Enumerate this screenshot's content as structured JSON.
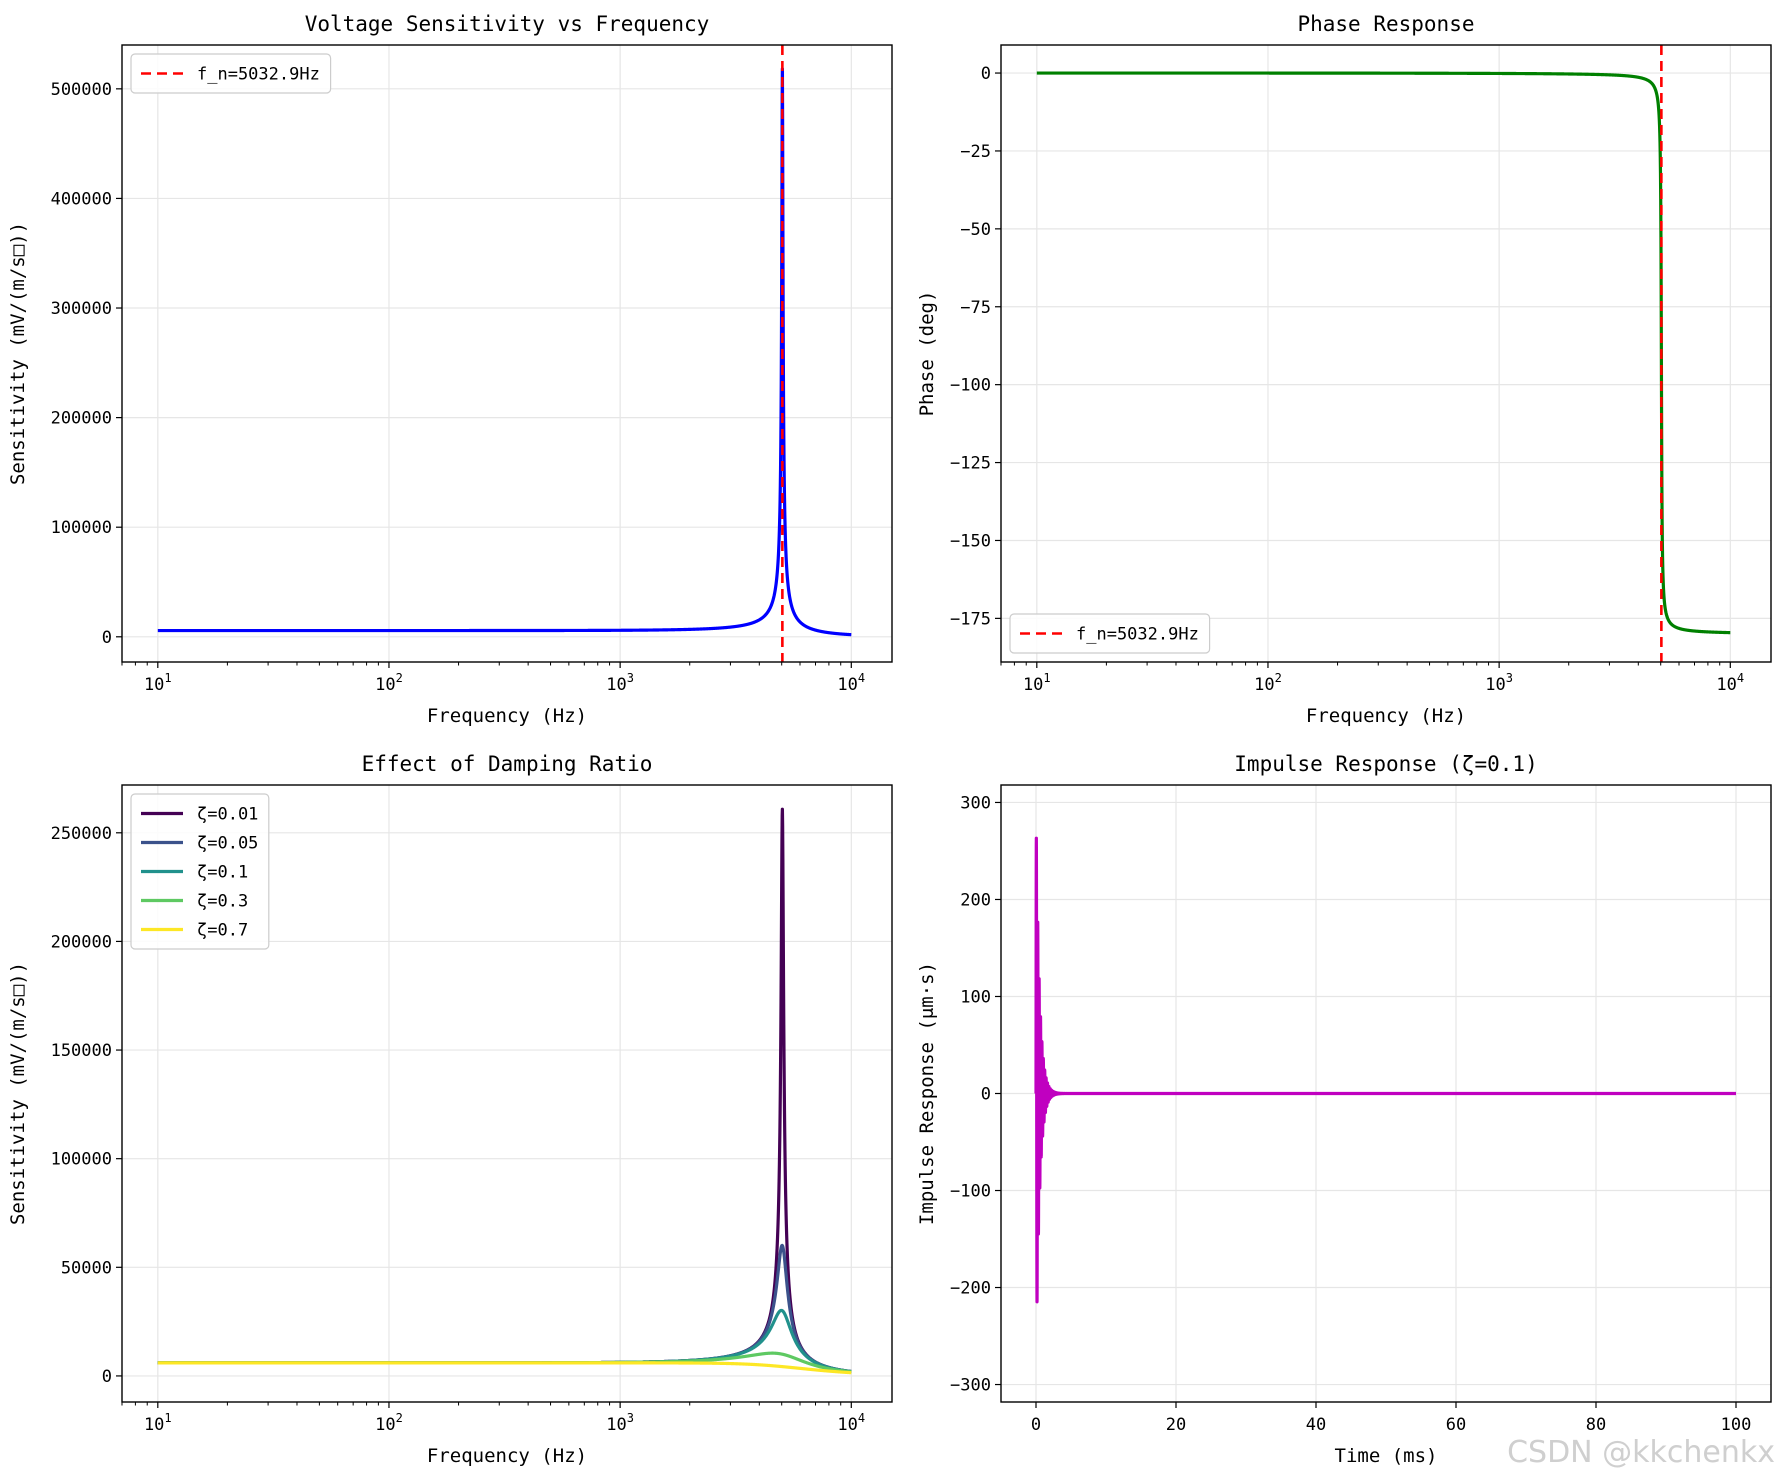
{
  "watermark": "CSDN @kkchenkx",
  "chart_data": [
    {
      "id": "sens",
      "type": "line",
      "title": "Voltage Sensitivity vs Frequency",
      "xlabel": "Frequency (Hz)",
      "ylabel": "Sensitivity (mV/(m/s□))",
      "xscale": "log",
      "xlim": [
        7,
        15000
      ],
      "ylim": [
        -23000,
        540000
      ],
      "xticks": [
        10,
        100,
        1000,
        10000
      ],
      "xticklabels": [
        [
          "10",
          "1"
        ],
        [
          "10",
          "2"
        ],
        [
          "10",
          "3"
        ],
        [
          "10",
          "4"
        ]
      ],
      "yticks": [
        0,
        100000,
        200000,
        300000,
        400000,
        500000
      ],
      "yticklabels": [
        "0",
        "100000",
        "200000",
        "300000",
        "400000",
        "500000"
      ],
      "grid": true,
      "legend_loc": "upper-left",
      "series": [
        {
          "name": "Sensitivity",
          "color": "#0000ff",
          "width": 3.2,
          "legend": false,
          "model": {
            "kind": "resonance",
            "fn": 5032.9,
            "zeta": 0.0055,
            "s0": 5700,
            "fmin": 10,
            "fmax": 10000
          }
        }
      ],
      "vlines": [
        {
          "x": 5032.9,
          "label": "f_n=5032.9Hz",
          "color": "#ff0000",
          "width": 2.6,
          "dash": "10,6"
        }
      ]
    },
    {
      "id": "phase",
      "type": "line",
      "title": "Phase Response",
      "xlabel": "Frequency (Hz)",
      "ylabel": "Phase (deg)",
      "xscale": "log",
      "xlim": [
        7,
        15000
      ],
      "ylim": [
        -189,
        9
      ],
      "xticks": [
        10,
        100,
        1000,
        10000
      ],
      "xticklabels": [
        [
          "10",
          "1"
        ],
        [
          "10",
          "2"
        ],
        [
          "10",
          "3"
        ],
        [
          "10",
          "4"
        ]
      ],
      "yticks": [
        0,
        -25,
        -50,
        -75,
        -100,
        -125,
        -150,
        -175
      ],
      "yticklabels": [
        "0",
        "−25",
        "−50",
        "−75",
        "−100",
        "−125",
        "−150",
        "−175"
      ],
      "grid": true,
      "legend_loc": "lower-left",
      "series": [
        {
          "name": "Phase",
          "color": "#008000",
          "width": 3.2,
          "legend": false,
          "model": {
            "kind": "phase",
            "fn": 5032.9,
            "zeta": 0.0055,
            "fmin": 10,
            "fmax": 10000
          }
        }
      ],
      "vlines": [
        {
          "x": 5032.9,
          "label": "f_n=5032.9Hz",
          "color": "#ff0000",
          "width": 2.6,
          "dash": "10,6"
        }
      ]
    },
    {
      "id": "damp",
      "type": "line",
      "title": "Effect of Damping Ratio",
      "xlabel": "Frequency (Hz)",
      "ylabel": "Sensitivity (mV/(m/s□))",
      "xscale": "log",
      "xlim": [
        7,
        15000
      ],
      "ylim": [
        -12000,
        272000
      ],
      "xticks": [
        10,
        100,
        1000,
        10000
      ],
      "xticklabels": [
        [
          "10",
          "1"
        ],
        [
          "10",
          "2"
        ],
        [
          "10",
          "3"
        ],
        [
          "10",
          "4"
        ]
      ],
      "yticks": [
        0,
        50000,
        100000,
        150000,
        200000,
        250000
      ],
      "yticklabels": [
        "0",
        "50000",
        "100000",
        "150000",
        "200000",
        "250000"
      ],
      "grid": true,
      "legend_loc": "upper-left",
      "series": [
        {
          "name": "ζ=0.01",
          "color": "#440154",
          "width": 3.2,
          "legend": true,
          "model": {
            "kind": "resonance",
            "fn": 5032.9,
            "zeta": 0.0115,
            "s0": 6000,
            "fmin": 10,
            "fmax": 10000
          }
        },
        {
          "name": "ζ=0.05",
          "color": "#3b528b",
          "width": 3.2,
          "legend": true,
          "model": {
            "kind": "resonance",
            "fn": 5032.9,
            "zeta": 0.05,
            "s0": 6000,
            "fmin": 10,
            "fmax": 10000
          }
        },
        {
          "name": "ζ=0.1",
          "color": "#21918c",
          "width": 3.2,
          "legend": true,
          "model": {
            "kind": "resonance",
            "fn": 5032.9,
            "zeta": 0.1,
            "s0": 6000,
            "fmin": 10,
            "fmax": 10000
          }
        },
        {
          "name": "ζ=0.3",
          "color": "#5ec962",
          "width": 3.2,
          "legend": true,
          "model": {
            "kind": "resonance",
            "fn": 5032.9,
            "zeta": 0.3,
            "s0": 6000,
            "fmin": 10,
            "fmax": 10000
          }
        },
        {
          "name": "ζ=0.7",
          "color": "#fde725",
          "width": 3.2,
          "legend": true,
          "model": {
            "kind": "resonance",
            "fn": 5032.9,
            "zeta": 0.7,
            "s0": 6000,
            "fmin": 10,
            "fmax": 10000
          }
        }
      ],
      "vlines": []
    },
    {
      "id": "impulse",
      "type": "line",
      "title": "Impulse Response (ζ=0.1)",
      "xlabel": "Time (ms)",
      "ylabel": "Impulse Response (μm·s)",
      "xscale": "linear",
      "xlim": [
        -5,
        105
      ],
      "ylim": [
        -318,
        318
      ],
      "xticks": [
        0,
        20,
        40,
        60,
        80,
        100
      ],
      "xticklabels": [
        "0",
        "20",
        "40",
        "60",
        "80",
        "100"
      ],
      "yticks": [
        300,
        200,
        100,
        0,
        -100,
        -200,
        -300
      ],
      "yticklabels": [
        "300",
        "200",
        "100",
        "0",
        "−100",
        "−200",
        "−300"
      ],
      "grid": true,
      "legend_loc": "none",
      "series": [
        {
          "name": "Impulse",
          "color": "#c000c0",
          "width": 3.2,
          "legend": false,
          "model": {
            "kind": "impulse",
            "amp": 290,
            "decay_ms": 0.5,
            "period_ms": 0.1987,
            "tmin": 0,
            "tmax": 100
          }
        }
      ],
      "vlines": []
    }
  ]
}
